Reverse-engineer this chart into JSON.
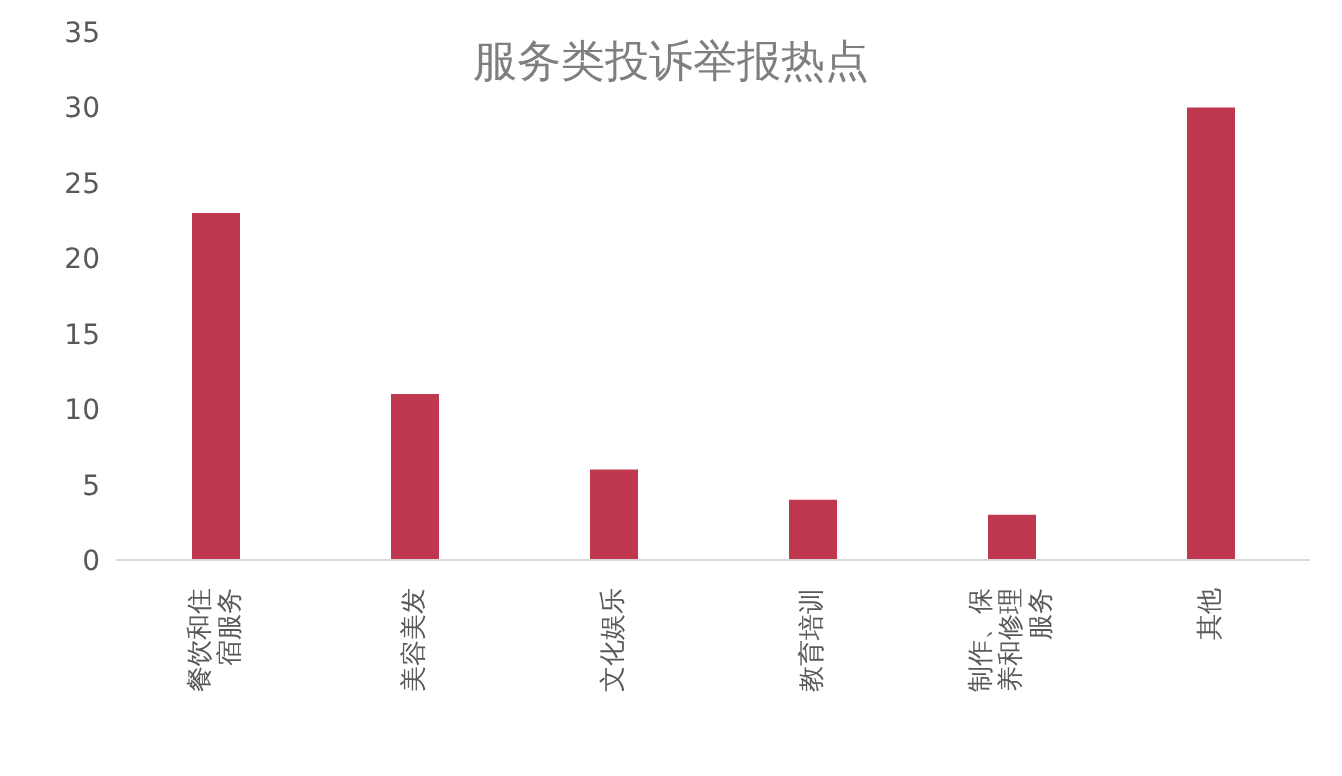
{
  "chart_data": {
    "type": "bar",
    "title": "服务类投诉举报热点",
    "categories": [
      "餐饮和住宿服务",
      "美容美发",
      "文化娱乐",
      "教育培训",
      "制作、保养和修理服务",
      "其他"
    ],
    "series": [
      {
        "color": "#c0384f",
        "values": [
          23,
          11,
          6,
          4,
          3,
          30
        ]
      }
    ],
    "ylim": [
      0,
      35
    ],
    "yticks": [
      0,
      5,
      10,
      15,
      20,
      25,
      30,
      35
    ],
    "grid": false,
    "legend": false
  }
}
